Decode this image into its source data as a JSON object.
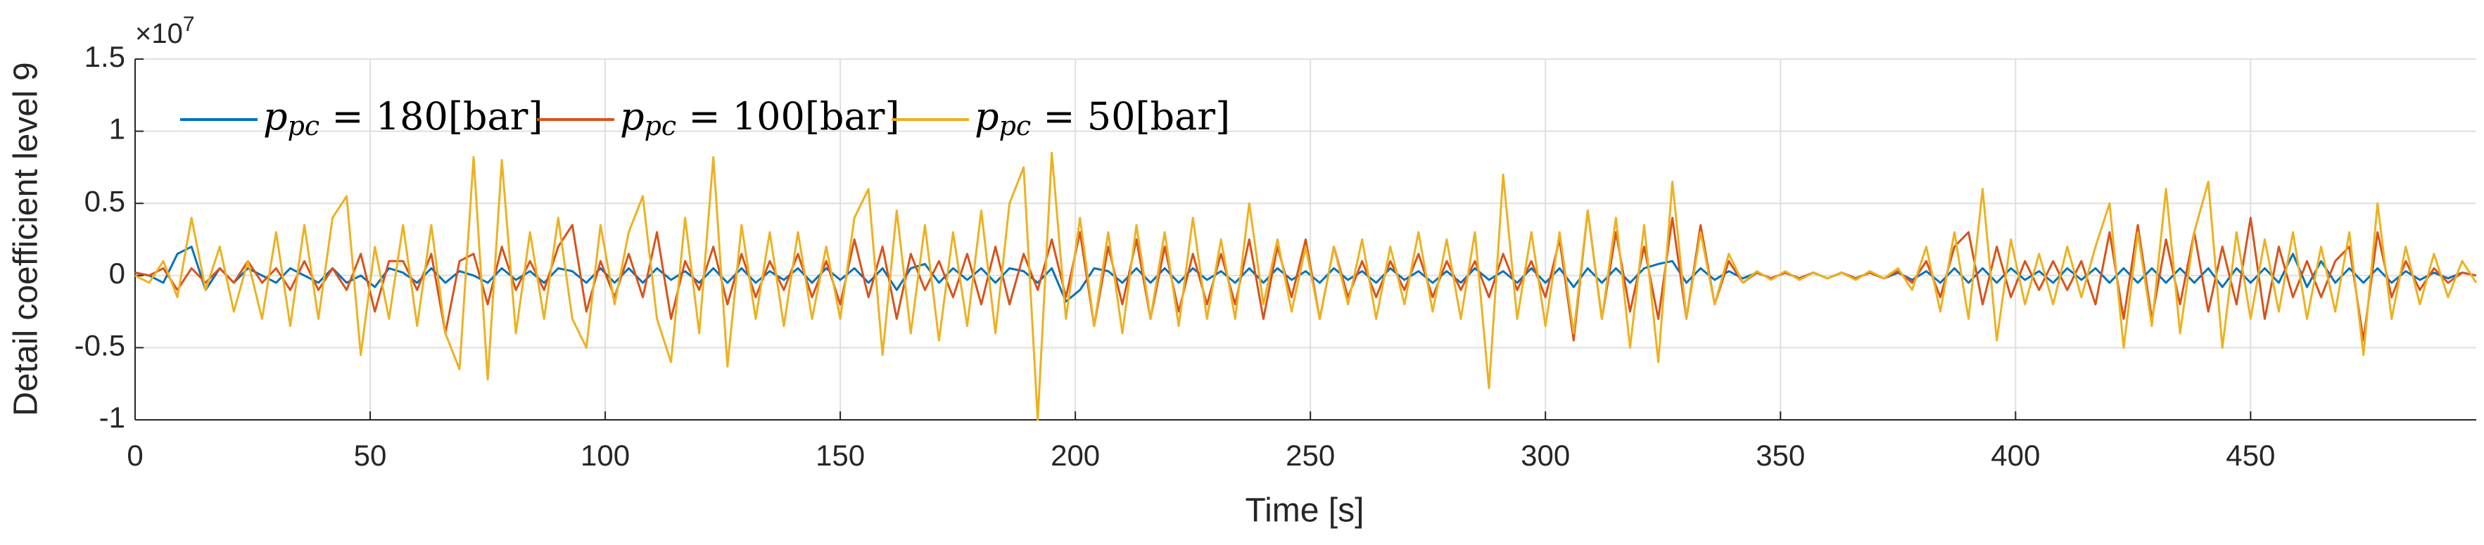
{
  "chart_data": {
    "type": "line",
    "x_label": "Time [s]",
    "y_label": "Detail coefficient level 9",
    "y_multiplier": "×10",
    "y_multiplier_exponent": "7",
    "xlim": [
      0,
      498
    ],
    "ylim": [
      -1,
      1.5
    ],
    "xticks": [
      0,
      50,
      100,
      150,
      200,
      250,
      300,
      350,
      400,
      450
    ],
    "yticks": [
      -1,
      -0.5,
      0,
      0.5,
      1,
      1.5
    ],
    "grid": true,
    "legend": "upper left",
    "x": [
      0,
      3,
      6,
      9,
      12,
      15,
      18,
      21,
      24,
      27,
      30,
      33,
      36,
      39,
      42,
      45,
      48,
      51,
      54,
      57,
      60,
      63,
      66,
      69,
      72,
      75,
      78,
      81,
      84,
      87,
      90,
      93,
      96,
      99,
      102,
      105,
      108,
      111,
      114,
      117,
      120,
      123,
      126,
      129,
      132,
      135,
      138,
      141,
      144,
      147,
      150,
      153,
      156,
      159,
      162,
      165,
      168,
      171,
      174,
      177,
      180,
      183,
      186,
      189,
      192,
      195,
      198,
      201,
      204,
      207,
      210,
      213,
      216,
      219,
      222,
      225,
      228,
      231,
      234,
      237,
      240,
      243,
      246,
      249,
      252,
      255,
      258,
      261,
      264,
      267,
      270,
      273,
      276,
      279,
      282,
      285,
      288,
      291,
      294,
      297,
      300,
      303,
      306,
      309,
      312,
      315,
      318,
      321,
      324,
      327,
      330,
      333,
      336,
      339,
      342,
      345,
      348,
      351,
      354,
      357,
      360,
      363,
      366,
      369,
      372,
      375,
      378,
      381,
      384,
      387,
      390,
      393,
      396,
      399,
      402,
      405,
      408,
      411,
      414,
      417,
      420,
      423,
      426,
      429,
      432,
      435,
      438,
      441,
      444,
      447,
      450,
      453,
      456,
      459,
      462,
      465,
      468,
      471,
      474,
      477,
      480,
      483,
      486,
      489,
      492,
      495,
      498
    ],
    "series": [
      {
        "name": "ppc = 180[bar]",
        "color": "#0072bd",
        "values": [
          0.02,
          0.0,
          -0.05,
          0.15,
          0.2,
          -0.1,
          0.05,
          -0.05,
          0.05,
          0.0,
          -0.05,
          0.05,
          0.0,
          -0.05,
          0.05,
          -0.05,
          0.0,
          -0.08,
          0.05,
          0.02,
          -0.05,
          0.05,
          -0.05,
          0.03,
          0.0,
          -0.05,
          0.05,
          -0.03,
          0.03,
          -0.05,
          0.05,
          0.03,
          -0.05,
          0.05,
          -0.05,
          0.05,
          -0.05,
          0.05,
          -0.03,
          0.03,
          -0.05,
          0.05,
          -0.05,
          0.05,
          -0.05,
          0.03,
          -0.03,
          0.05,
          -0.05,
          0.05,
          -0.03,
          0.05,
          -0.05,
          0.05,
          -0.1,
          0.05,
          0.08,
          -0.05,
          0.05,
          -0.03,
          0.05,
          -0.05,
          0.05,
          0.03,
          -0.05,
          0.05,
          -0.18,
          -0.1,
          0.05,
          0.03,
          -0.05,
          0.05,
          -0.05,
          0.05,
          -0.05,
          0.05,
          -0.03,
          0.03,
          -0.05,
          0.05,
          -0.05,
          0.05,
          -0.03,
          0.03,
          -0.05,
          0.05,
          -0.03,
          0.03,
          -0.05,
          0.05,
          -0.03,
          0.03,
          -0.05,
          0.03,
          -0.05,
          0.05,
          -0.03,
          0.03,
          -0.05,
          0.05,
          -0.05,
          0.05,
          -0.08,
          0.05,
          -0.05,
          0.05,
          -0.05,
          0.05,
          0.08,
          0.1,
          -0.05,
          0.05,
          -0.03,
          0.03,
          -0.02,
          0.02,
          -0.02,
          0.02,
          -0.02,
          0.02,
          -0.02,
          0.02,
          -0.02,
          0.02,
          -0.02,
          0.02,
          -0.03,
          0.03,
          -0.05,
          0.05,
          -0.05,
          0.05,
          -0.05,
          0.05,
          -0.03,
          0.03,
          -0.05,
          0.05,
          -0.03,
          0.05,
          -0.05,
          0.05,
          -0.05,
          0.05,
          -0.05,
          0.05,
          -0.05,
          0.05,
          -0.08,
          0.05,
          -0.05,
          0.05,
          -0.05,
          0.15,
          -0.08,
          0.1,
          -0.05,
          0.05,
          -0.05,
          0.05,
          -0.05,
          0.03,
          -0.03,
          0.02,
          -0.02,
          0.02,
          0.0
        ]
      },
      {
        "name": "ppc = 100[bar]",
        "color": "#d95319",
        "values": [
          0.02,
          0.0,
          0.05,
          -0.1,
          0.05,
          -0.05,
          0.05,
          -0.05,
          0.1,
          -0.05,
          0.05,
          -0.1,
          0.1,
          -0.1,
          0.05,
          -0.1,
          0.15,
          -0.25,
          0.1,
          0.1,
          -0.1,
          0.15,
          -0.4,
          0.1,
          0.15,
          -0.2,
          0.2,
          -0.1,
          0.1,
          -0.1,
          0.2,
          0.35,
          -0.25,
          0.1,
          -0.15,
          0.15,
          -0.15,
          0.3,
          -0.3,
          0.1,
          -0.1,
          0.2,
          -0.2,
          0.15,
          -0.15,
          0.1,
          -0.1,
          0.15,
          -0.15,
          0.1,
          -0.2,
          0.25,
          -0.15,
          0.2,
          -0.3,
          0.15,
          -0.1,
          0.1,
          -0.15,
          0.15,
          -0.2,
          0.2,
          -0.2,
          0.15,
          -0.1,
          0.25,
          -0.15,
          0.3,
          -0.35,
          0.2,
          -0.2,
          0.25,
          -0.3,
          0.2,
          -0.25,
          0.15,
          -0.2,
          0.15,
          -0.2,
          0.25,
          -0.3,
          0.2,
          -0.15,
          0.25,
          -0.3,
          0.2,
          -0.15,
          0.1,
          -0.15,
          0.1,
          -0.1,
          0.15,
          -0.15,
          0.1,
          -0.1,
          0.1,
          -0.15,
          0.15,
          -0.1,
          0.1,
          -0.15,
          0.25,
          -0.45,
          0.45,
          -0.3,
          0.3,
          -0.25,
          0.2,
          -0.3,
          0.4,
          -0.3,
          0.35,
          -0.2,
          0.1,
          -0.05,
          0.02,
          -0.02,
          0.02,
          -0.02,
          0.02,
          -0.02,
          0.02,
          -0.02,
          0.02,
          -0.02,
          0.03,
          -0.05,
          0.1,
          -0.15,
          0.2,
          0.3,
          -0.2,
          0.2,
          -0.15,
          0.1,
          -0.1,
          0.1,
          -0.1,
          0.1,
          -0.2,
          0.3,
          -0.3,
          0.35,
          -0.3,
          0.25,
          -0.2,
          0.3,
          -0.25,
          0.2,
          -0.2,
          0.4,
          -0.3,
          0.2,
          -0.15,
          0.1,
          -0.15,
          0.1,
          0.2,
          -0.45,
          0.3,
          -0.15,
          0.1,
          -0.1,
          0.05,
          -0.05,
          0.02,
          0.0
        ]
      },
      {
        "name": "ppc = 50[bar]",
        "color": "#edb120",
        "values": [
          0.0,
          -0.05,
          0.1,
          -0.15,
          0.4,
          -0.1,
          0.2,
          -0.25,
          0.1,
          -0.3,
          0.3,
          -0.35,
          0.35,
          -0.3,
          0.4,
          0.55,
          -0.55,
          0.2,
          -0.3,
          0.35,
          -0.35,
          0.35,
          -0.4,
          -0.65,
          0.82,
          -0.72,
          0.8,
          -0.4,
          0.3,
          -0.3,
          0.4,
          -0.3,
          -0.5,
          0.35,
          -0.2,
          0.3,
          0.55,
          -0.3,
          -0.6,
          0.4,
          -0.4,
          0.82,
          -0.63,
          0.35,
          -0.3,
          0.3,
          -0.35,
          0.3,
          -0.3,
          0.2,
          -0.3,
          0.4,
          0.6,
          -0.55,
          0.45,
          -0.4,
          0.35,
          -0.45,
          0.3,
          -0.35,
          0.45,
          -0.4,
          0.5,
          0.75,
          -1.0,
          0.85,
          -0.3,
          0.4,
          -0.35,
          0.3,
          -0.4,
          0.35,
          -0.3,
          0.3,
          -0.35,
          0.4,
          -0.3,
          0.25,
          -0.3,
          0.5,
          -0.2,
          0.25,
          -0.25,
          0.2,
          -0.3,
          0.2,
          -0.2,
          0.25,
          -0.3,
          0.2,
          -0.2,
          0.3,
          -0.25,
          0.25,
          -0.3,
          0.3,
          -0.78,
          0.7,
          -0.3,
          0.3,
          -0.35,
          0.3,
          -0.4,
          0.45,
          -0.3,
          0.4,
          -0.5,
          0.35,
          -0.6,
          0.65,
          -0.3,
          0.3,
          -0.2,
          0.15,
          -0.05,
          0.03,
          -0.03,
          0.03,
          -0.03,
          0.02,
          -0.02,
          0.02,
          -0.03,
          0.03,
          -0.02,
          0.05,
          -0.1,
          0.2,
          -0.25,
          0.3,
          -0.3,
          0.6,
          -0.45,
          0.25,
          -0.2,
          0.15,
          -0.2,
          0.2,
          -0.15,
          0.2,
          0.5,
          -0.5,
          0.3,
          -0.35,
          0.6,
          -0.4,
          0.3,
          0.65,
          -0.5,
          0.3,
          -0.3,
          0.25,
          -0.25,
          0.3,
          -0.3,
          0.2,
          -0.25,
          0.3,
          -0.55,
          0.5,
          -0.3,
          0.2,
          -0.2,
          0.15,
          -0.15,
          0.1,
          -0.05
        ]
      }
    ]
  }
}
